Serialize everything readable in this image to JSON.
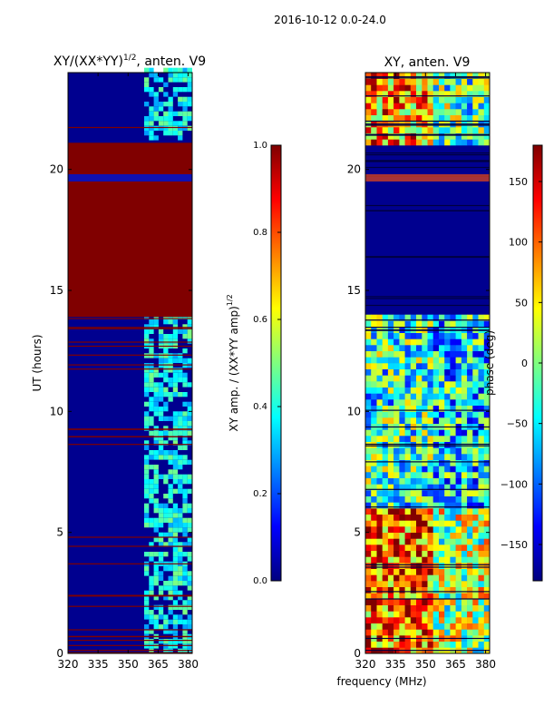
{
  "suptitle": "2016-10-12 0.0-24.0",
  "colors": {
    "low": "#00008f",
    "high": "#800000",
    "jet_stops": [
      "#00007f",
      "#0000ff",
      "#007fff",
      "#00ffff",
      "#7fff7f",
      "#ffff00",
      "#ff7f00",
      "#ff0000",
      "#7f0000"
    ]
  },
  "chart_data": [
    {
      "type": "heatmap",
      "title": "XY/(XX*YY)",
      "title_sup": "1/2",
      "title_suffix": ", anten. V9",
      "xlabel": "",
      "ylabel": "UT (hours)",
      "xlim": [
        320,
        382
      ],
      "ylim": [
        0,
        24
      ],
      "xticks": [
        320,
        335,
        350,
        365,
        380
      ],
      "yticks": [
        0,
        5,
        10,
        15,
        20
      ],
      "grid": false,
      "rfi_band_mhz": [
        358,
        382
      ],
      "flagged_hours": [
        [
          13.9,
          21.1
        ],
        [
          19.5,
          19.8
        ]
      ],
      "colorbar": {
        "label": "XY amp. / (XX*YY amp)",
        "label_sup": "1/2",
        "range": [
          0.0,
          1.0
        ],
        "ticks": [
          "0.0",
          "0.2",
          "0.4",
          "0.6",
          "0.8",
          "1.0"
        ]
      }
    },
    {
      "type": "heatmap",
      "title": "XY, anten. V9",
      "xlabel": "frequency (MHz)",
      "ylabel": "",
      "xlim": [
        320,
        382
      ],
      "ylim": [
        0,
        24
      ],
      "xticks": [
        320,
        335,
        350,
        365,
        380
      ],
      "yticks": [
        0,
        5,
        10,
        15,
        20
      ],
      "grid": false,
      "flagged_hours": [
        [
          14.0,
          21.0
        ]
      ],
      "colorbar": {
        "label": "phase (deg)",
        "range": [
          -180,
          180
        ],
        "ticks": [
          "150",
          "100",
          "50",
          "0",
          "−50",
          "−100",
          "−150"
        ]
      }
    }
  ]
}
